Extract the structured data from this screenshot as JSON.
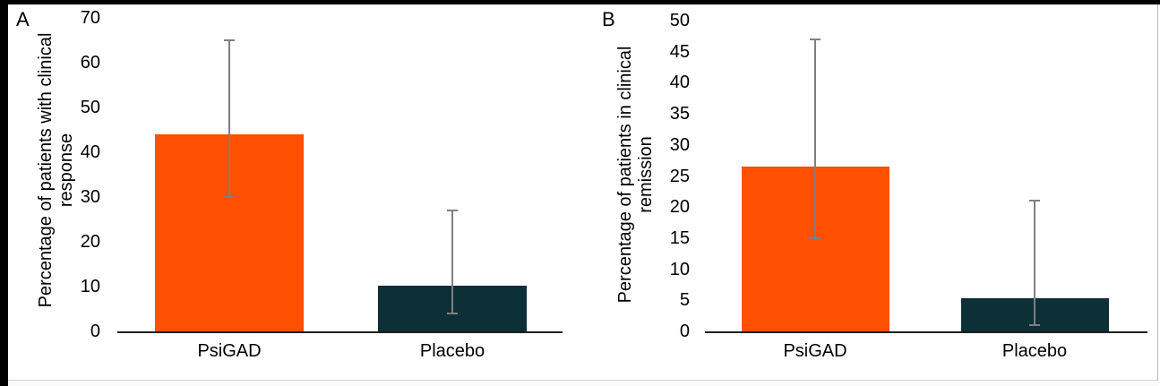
{
  "figure": {
    "background_color": "#000000",
    "card_color": "#FFFFFF",
    "axis_line_color": "#1F1F1F",
    "text_color": "#000000"
  },
  "chart_data": [
    {
      "type": "bar",
      "panel_label": "A",
      "title": "",
      "xlabel": "",
      "ylabel": "Percentage of patients with clinical response",
      "ylabel_lines": [
        "Percentage of patients with clinical",
        "response"
      ],
      "categories": [
        "PsiGAD",
        "Placebo"
      ],
      "values": [
        44,
        10.3
      ],
      "error_low": [
        30,
        4
      ],
      "error_high": [
        65,
        27
      ],
      "ylim": [
        0,
        70
      ],
      "ytick_step": 10,
      "grid": false,
      "legend": false,
      "bar_colors": [
        "#FE5000",
        "#0D2F36"
      ],
      "error_color": "#7F7F7F"
    },
    {
      "type": "bar",
      "panel_label": "B",
      "title": "",
      "xlabel": "",
      "ylabel": "Percentage of patients in clinical remission",
      "ylabel_lines": [
        "Percentage of patients in clinical",
        "remission"
      ],
      "categories": [
        "PsiGAD",
        "Placebo"
      ],
      "values": [
        26.5,
        5.4
      ],
      "error_low": [
        15,
        1
      ],
      "error_high": [
        47,
        21
      ],
      "ylim": [
        0,
        50
      ],
      "ytick_step": 5,
      "grid": false,
      "legend": false,
      "bar_colors": [
        "#FE5000",
        "#0D2F36"
      ],
      "error_color": "#7F7F7F"
    }
  ]
}
